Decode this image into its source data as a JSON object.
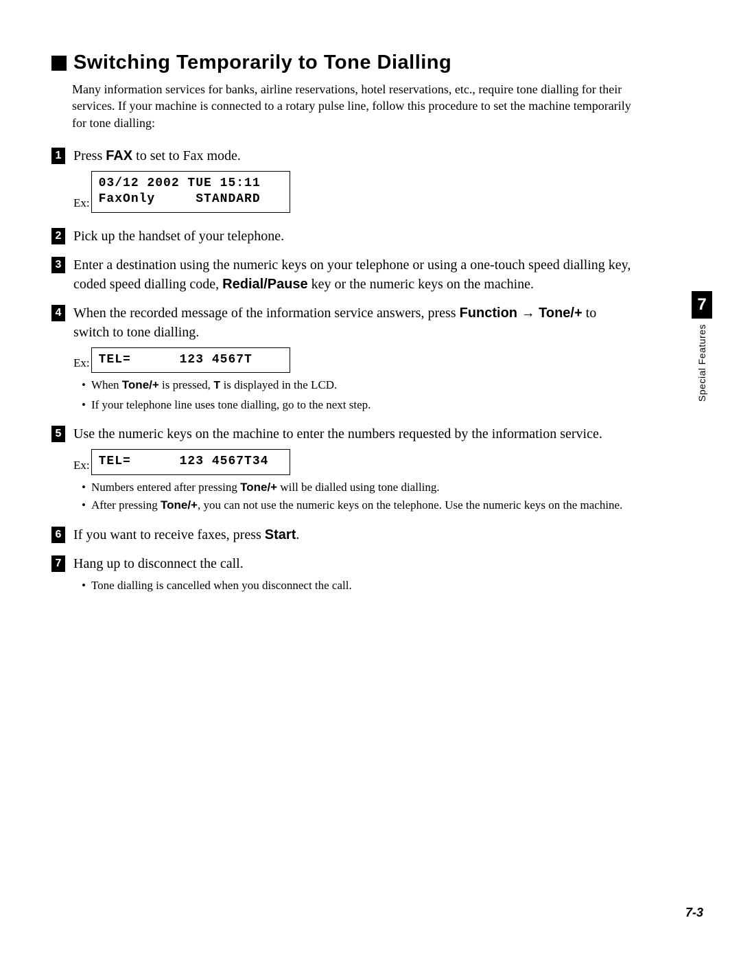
{
  "heading": "Switching Temporarily to Tone Dialling",
  "intro": "Many information services for banks, airline reservations, hotel reservations, etc., require tone dialling for their services. If your machine is connected to a rotary pulse line, follow this procedure to set the machine temporarily for tone dialling:",
  "steps": {
    "s1": {
      "pre": "Press ",
      "b1": "FAX",
      "post": " to set to Fax mode."
    },
    "s2": {
      "text": "Pick up the handset of your telephone."
    },
    "s3": {
      "pre": "Enter a destination using the numeric keys on your telephone or using a one-touch speed dialling key, coded speed dialling code, ",
      "b1": "Redial/Pause",
      "post": " key or the numeric keys on the machine."
    },
    "s4": {
      "pre": "When the recorded message of the information service answers, press ",
      "b1": "Function",
      "arrow": " → ",
      "b2": "Tone/+",
      "post": " to switch to tone dialling."
    },
    "s5": {
      "text": "Use the numeric keys on the machine to enter the numbers requested by the information service."
    },
    "s6": {
      "pre": "If you want to receive faxes, press ",
      "b1": "Start",
      "post": "."
    },
    "s7": {
      "text": "Hang up to disconnect the call."
    }
  },
  "lcd": {
    "ex": "Ex:",
    "d1": "03/12 2002 TUE 15:11\nFaxOnly     STANDARD",
    "d2": "TEL=      123 4567T",
    "d3": "TEL=      123 4567T34"
  },
  "bullets": {
    "b4a_pre": "When ",
    "b4a_b": "Tone/+",
    "b4a_mid": " is pressed, ",
    "b4a_mono": "T",
    "b4a_post": " is displayed in the LCD.",
    "b4b": "If your telephone line uses tone dialling, go to the next step.",
    "b5a_pre": "Numbers entered after pressing ",
    "b5a_b": "Tone/+",
    "b5a_post": " will be dialled using tone dialling.",
    "b5b_pre": "After pressing ",
    "b5b_b": "Tone/+",
    "b5b_post": ", you can not use the numeric keys on the telephone. Use the numeric keys on the machine.",
    "b7a": "Tone dialling is cancelled when you disconnect the call."
  },
  "side": {
    "num": "7",
    "label": "Special Features"
  },
  "pagenum": "7-3",
  "colors": {
    "text": "#000000",
    "bg": "#ffffff"
  },
  "fontsize": {
    "heading": 29,
    "body": 20,
    "intro": 18,
    "bullet": 17,
    "lcd": 18
  }
}
